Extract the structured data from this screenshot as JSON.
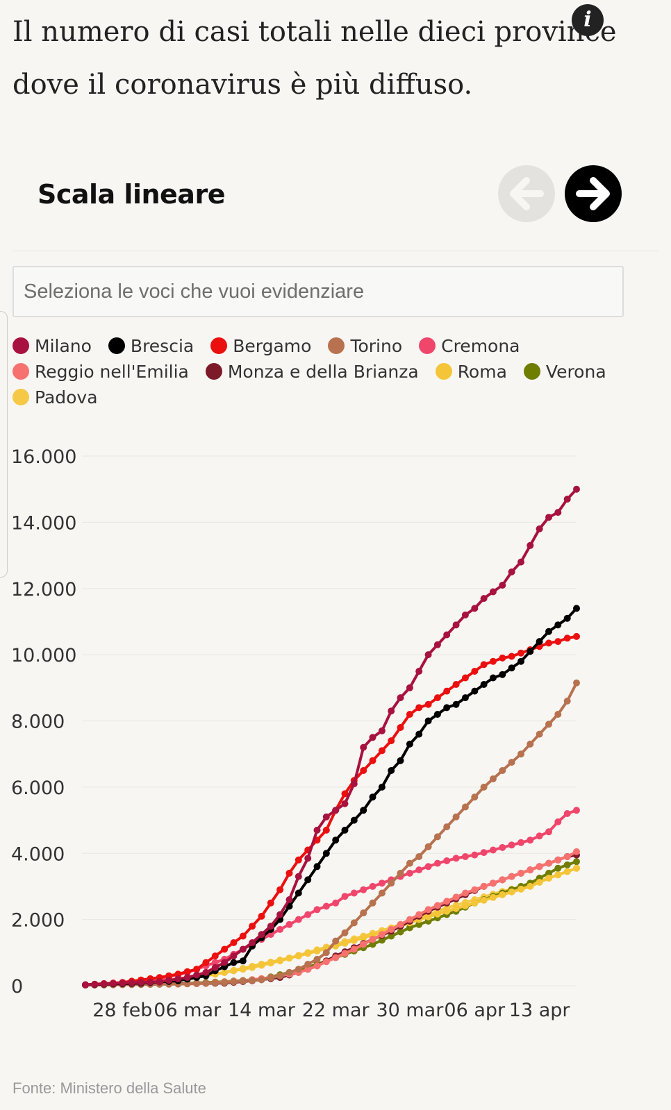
{
  "title_line1": "Il numero di casi totali nelle dieci province",
  "title_line2": "dove il coronavirus è più diffuso.",
  "info_icon_label": "i",
  "subtitle": "Scala lineare",
  "search_placeholder": "Seleziona le voci che vuoi evidenziare",
  "source": "Fonte: Ministero della Salute",
  "chart_data": {
    "type": "line",
    "title": "Il numero di casi totali nelle dieci province dove il coronavirus è più diffuso.",
    "subtitle": "Scala lineare",
    "xlabel": "",
    "ylabel": "",
    "ylim": [
      0,
      16000
    ],
    "y_ticks": [
      0,
      2000,
      4000,
      6000,
      8000,
      10000,
      12000,
      14000,
      16000
    ],
    "y_tick_labels": [
      "0",
      "2.000",
      "4.000",
      "6.000",
      "8.000",
      "10.000",
      "12.000",
      "14.000",
      "16.000"
    ],
    "x_tick_labels": [
      "28 feb",
      "06 mar",
      "14 mar",
      "22 mar",
      "30 mar",
      "06 apr",
      "13 apr"
    ],
    "x_tick_day_index": [
      4,
      11,
      19,
      27,
      35,
      42,
      49
    ],
    "x_start": "24 feb",
    "x_end": "15 apr",
    "legend_position": "top",
    "series": [
      {
        "name": "Milano",
        "color": "#a8123e",
        "points": [
          [
            0,
            30
          ],
          [
            4,
            80
          ],
          [
            8,
            120
          ],
          [
            11,
            250
          ],
          [
            13,
            400
          ],
          [
            14,
            550
          ],
          [
            15,
            700
          ],
          [
            16,
            900
          ],
          [
            17,
            1100
          ],
          [
            18,
            1300
          ],
          [
            19,
            1550
          ],
          [
            20,
            1800
          ],
          [
            21,
            2150
          ],
          [
            22,
            2600
          ],
          [
            23,
            3300
          ],
          [
            24,
            3850
          ],
          [
            25,
            4700
          ],
          [
            26,
            5100
          ],
          [
            27,
            5300
          ],
          [
            28,
            5500
          ],
          [
            29,
            6100
          ],
          [
            30,
            7200
          ],
          [
            31,
            7500
          ],
          [
            32,
            7700
          ],
          [
            33,
            8300
          ],
          [
            34,
            8700
          ],
          [
            35,
            9000
          ],
          [
            36,
            9500
          ],
          [
            37,
            10000
          ],
          [
            38,
            10300
          ],
          [
            39,
            10600
          ],
          [
            40,
            10900
          ],
          [
            41,
            11200
          ],
          [
            42,
            11400
          ],
          [
            43,
            11700
          ],
          [
            44,
            11900
          ],
          [
            45,
            12100
          ],
          [
            46,
            12500
          ],
          [
            47,
            12800
          ],
          [
            48,
            13300
          ],
          [
            49,
            13800
          ],
          [
            50,
            14150
          ],
          [
            51,
            14300
          ],
          [
            52,
            14700
          ],
          [
            53,
            15000
          ]
        ]
      },
      {
        "name": "Brescia",
        "color": "#000000",
        "points": [
          [
            0,
            30
          ],
          [
            6,
            80
          ],
          [
            10,
            150
          ],
          [
            13,
            300
          ],
          [
            14,
            450
          ],
          [
            16,
            700
          ],
          [
            17,
            750
          ],
          [
            18,
            1200
          ],
          [
            19,
            1450
          ],
          [
            20,
            1700
          ],
          [
            21,
            2000
          ],
          [
            22,
            2400
          ],
          [
            23,
            2800
          ],
          [
            24,
            3200
          ],
          [
            25,
            3600
          ],
          [
            26,
            4000
          ],
          [
            27,
            4400
          ],
          [
            28,
            4700
          ],
          [
            29,
            5000
          ],
          [
            30,
            5300
          ],
          [
            31,
            5700
          ],
          [
            32,
            6000
          ],
          [
            33,
            6500
          ],
          [
            34,
            6800
          ],
          [
            35,
            7300
          ],
          [
            36,
            7600
          ],
          [
            37,
            8000
          ],
          [
            38,
            8200
          ],
          [
            39,
            8400
          ],
          [
            40,
            8500
          ],
          [
            41,
            8700
          ],
          [
            42,
            8900
          ],
          [
            43,
            9100
          ],
          [
            44,
            9300
          ],
          [
            45,
            9400
          ],
          [
            46,
            9600
          ],
          [
            47,
            9800
          ],
          [
            48,
            10100
          ],
          [
            49,
            10400
          ],
          [
            50,
            10700
          ],
          [
            51,
            10900
          ],
          [
            52,
            11100
          ],
          [
            53,
            11400
          ]
        ]
      },
      {
        "name": "Bergamo",
        "color": "#ec0f0f",
        "points": [
          [
            0,
            30
          ],
          [
            4,
            100
          ],
          [
            8,
            250
          ],
          [
            10,
            350
          ],
          [
            12,
            500
          ],
          [
            13,
            700
          ],
          [
            14,
            900
          ],
          [
            15,
            1100
          ],
          [
            16,
            1300
          ],
          [
            17,
            1500
          ],
          [
            18,
            1800
          ],
          [
            19,
            2100
          ],
          [
            20,
            2500
          ],
          [
            21,
            2900
          ],
          [
            22,
            3400
          ],
          [
            23,
            3800
          ],
          [
            24,
            4100
          ],
          [
            25,
            4400
          ],
          [
            26,
            4700
          ],
          [
            27,
            5300
          ],
          [
            28,
            5800
          ],
          [
            29,
            6200
          ],
          [
            30,
            6500
          ],
          [
            31,
            6800
          ],
          [
            32,
            7100
          ],
          [
            33,
            7400
          ],
          [
            34,
            7800
          ],
          [
            35,
            8200
          ],
          [
            36,
            8400
          ],
          [
            37,
            8500
          ],
          [
            38,
            8700
          ],
          [
            39,
            8900
          ],
          [
            40,
            9100
          ],
          [
            41,
            9300
          ],
          [
            42,
            9500
          ],
          [
            43,
            9700
          ],
          [
            44,
            9800
          ],
          [
            45,
            9900
          ],
          [
            46,
            9950
          ],
          [
            47,
            10050
          ],
          [
            48,
            10150
          ],
          [
            49,
            10250
          ],
          [
            50,
            10350
          ],
          [
            51,
            10400
          ],
          [
            52,
            10500
          ],
          [
            53,
            10550
          ]
        ]
      },
      {
        "name": "Torino",
        "color": "#b8724f",
        "points": [
          [
            0,
            20
          ],
          [
            10,
            50
          ],
          [
            15,
            100
          ],
          [
            19,
            180
          ],
          [
            21,
            300
          ],
          [
            23,
            500
          ],
          [
            25,
            800
          ],
          [
            26,
            1000
          ],
          [
            27,
            1350
          ],
          [
            28,
            1600
          ],
          [
            29,
            1900
          ],
          [
            30,
            2200
          ],
          [
            31,
            2500
          ],
          [
            32,
            2800
          ],
          [
            33,
            3100
          ],
          [
            34,
            3400
          ],
          [
            35,
            3700
          ],
          [
            36,
            3900
          ],
          [
            37,
            4200
          ],
          [
            38,
            4500
          ],
          [
            39,
            4800
          ],
          [
            40,
            5100
          ],
          [
            41,
            5400
          ],
          [
            42,
            5700
          ],
          [
            43,
            6000
          ],
          [
            44,
            6250
          ],
          [
            45,
            6500
          ],
          [
            46,
            6750
          ],
          [
            47,
            7000
          ],
          [
            48,
            7300
          ],
          [
            49,
            7600
          ],
          [
            50,
            7900
          ],
          [
            51,
            8200
          ],
          [
            52,
            8600
          ],
          [
            53,
            9150
          ]
        ]
      },
      {
        "name": "Cremona",
        "color": "#f0466c",
        "points": [
          [
            0,
            30
          ],
          [
            6,
            100
          ],
          [
            8,
            200
          ],
          [
            11,
            400
          ],
          [
            13,
            600
          ],
          [
            15,
            800
          ],
          [
            17,
            1100
          ],
          [
            19,
            1400
          ],
          [
            21,
            1700
          ],
          [
            23,
            2000
          ],
          [
            25,
            2300
          ],
          [
            27,
            2500
          ],
          [
            28,
            2700
          ],
          [
            30,
            2900
          ],
          [
            32,
            3100
          ],
          [
            34,
            3300
          ],
          [
            36,
            3500
          ],
          [
            38,
            3700
          ],
          [
            40,
            3850
          ],
          [
            42,
            3950
          ],
          [
            44,
            4100
          ],
          [
            46,
            4250
          ],
          [
            48,
            4400
          ],
          [
            50,
            4650
          ],
          [
            51,
            4950
          ],
          [
            52,
            5200
          ],
          [
            53,
            5300
          ]
        ]
      },
      {
        "name": "Reggio nell'Emilia",
        "color": "#f7726f",
        "points": [
          [
            0,
            20
          ],
          [
            12,
            60
          ],
          [
            17,
            150
          ],
          [
            20,
            250
          ],
          [
            23,
            400
          ],
          [
            25,
            600
          ],
          [
            27,
            850
          ],
          [
            29,
            1100
          ],
          [
            31,
            1400
          ],
          [
            33,
            1700
          ],
          [
            35,
            2000
          ],
          [
            37,
            2300
          ],
          [
            39,
            2550
          ],
          [
            41,
            2800
          ],
          [
            43,
            3000
          ],
          [
            45,
            3200
          ],
          [
            47,
            3400
          ],
          [
            49,
            3600
          ],
          [
            51,
            3800
          ],
          [
            52,
            3900
          ],
          [
            53,
            4050
          ]
        ]
      },
      {
        "name": "Monza e della Brianza",
        "color": "#7d1a2a",
        "points": [
          [
            0,
            20
          ],
          [
            15,
            80
          ],
          [
            18,
            150
          ],
          [
            21,
            250
          ],
          [
            23,
            400
          ],
          [
            25,
            600
          ],
          [
            27,
            900
          ],
          [
            29,
            1150
          ],
          [
            31,
            1400
          ],
          [
            33,
            1650
          ],
          [
            35,
            1950
          ],
          [
            37,
            2250
          ],
          [
            39,
            2500
          ],
          [
            41,
            2750
          ],
          [
            43,
            3000
          ],
          [
            45,
            3200
          ],
          [
            47,
            3400
          ],
          [
            49,
            3600
          ],
          [
            51,
            3800
          ],
          [
            52,
            3900
          ],
          [
            53,
            3950
          ]
        ]
      },
      {
        "name": "Roma",
        "color": "#f4c538",
        "points": [
          [
            0,
            20
          ],
          [
            8,
            100
          ],
          [
            11,
            200
          ],
          [
            15,
            400
          ],
          [
            19,
            650
          ],
          [
            23,
            900
          ],
          [
            27,
            1200
          ],
          [
            30,
            1450
          ],
          [
            33,
            1700
          ],
          [
            36,
            2000
          ],
          [
            39,
            2250
          ],
          [
            42,
            2500
          ],
          [
            45,
            2750
          ],
          [
            48,
            3000
          ],
          [
            50,
            3250
          ],
          [
            51,
            3350
          ],
          [
            52,
            3450
          ],
          [
            53,
            3550
          ]
        ]
      },
      {
        "name": "Verona",
        "color": "#6f7d00",
        "points": [
          [
            0,
            20
          ],
          [
            10,
            60
          ],
          [
            15,
            120
          ],
          [
            19,
            200
          ],
          [
            22,
            400
          ],
          [
            25,
            650
          ],
          [
            28,
            950
          ],
          [
            31,
            1250
          ],
          [
            33,
            1500
          ],
          [
            35,
            1750
          ],
          [
            37,
            1950
          ],
          [
            40,
            2250
          ],
          [
            42,
            2500
          ],
          [
            45,
            2800
          ],
          [
            48,
            3100
          ],
          [
            50,
            3400
          ],
          [
            51,
            3550
          ],
          [
            52,
            3650
          ],
          [
            53,
            3750
          ]
        ]
      },
      {
        "name": "Padova",
        "color": "#f5c945",
        "points": [
          [
            0,
            30
          ],
          [
            6,
            100
          ],
          [
            10,
            200
          ],
          [
            14,
            350
          ],
          [
            18,
            550
          ],
          [
            21,
            750
          ],
          [
            24,
            1000
          ],
          [
            27,
            1250
          ],
          [
            30,
            1500
          ],
          [
            33,
            1750
          ],
          [
            36,
            2050
          ],
          [
            39,
            2350
          ],
          [
            42,
            2600
          ],
          [
            45,
            2850
          ],
          [
            48,
            3050
          ],
          [
            50,
            3250
          ],
          [
            51,
            3350
          ],
          [
            52,
            3450
          ],
          [
            53,
            3550
          ]
        ]
      }
    ]
  }
}
